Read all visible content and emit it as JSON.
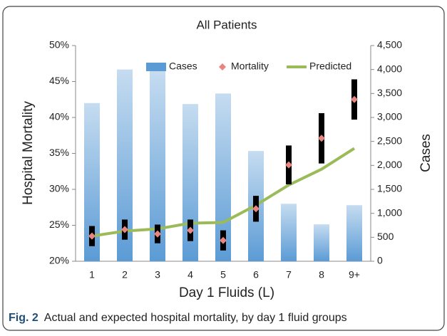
{
  "chart_data": {
    "type": "bar-line",
    "title": "All Patients",
    "categories": [
      "1",
      "2",
      "3",
      "4",
      "5",
      "6",
      "7",
      "8",
      "9+"
    ],
    "x_label": "Day 1 Fluids (L)",
    "y_label": "Hospital Mortality",
    "y2_label": "Cases",
    "ylim": [
      20,
      50
    ],
    "yticks": [
      {
        "value": 20,
        "label": "20%"
      },
      {
        "value": 25,
        "label": "25%"
      },
      {
        "value": 30,
        "label": "30%"
      },
      {
        "value": 35,
        "label": "35%"
      },
      {
        "value": 40,
        "label": "40%"
      },
      {
        "value": 45,
        "label": "45%"
      },
      {
        "value": 50,
        "label": "50%"
      }
    ],
    "y2lim": [
      0,
      4500
    ],
    "y2ticks": [
      0,
      500,
      {
        "value": 1000,
        "label": "1,000"
      },
      {
        "value": 1500,
        "label": "1,500"
      },
      {
        "value": 2000,
        "label": "2,000"
      },
      {
        "value": 2500,
        "label": "2,500"
      },
      {
        "value": 3000,
        "label": "3,000"
      },
      {
        "value": 3500,
        "label": "3,500"
      },
      {
        "value": 4000,
        "label": "4,000"
      },
      {
        "value": 4500,
        "label": "4,500"
      }
    ],
    "series": [
      {
        "name": "Cases",
        "type": "bar",
        "axis": "y2",
        "color": "#5b9bd5",
        "values": [
          3300,
          4000,
          3980,
          3280,
          3500,
          2300,
          1200,
          770,
          1170
        ]
      },
      {
        "name": "Mortality",
        "type": "scatter",
        "color": "#e8857f",
        "values": [
          23.5,
          24.4,
          23.8,
          24.3,
          22.9,
          27.3,
          33.4,
          37.1,
          42.5
        ],
        "errors": [
          1.4,
          1.4,
          1.3,
          1.5,
          1.4,
          1.8,
          2.7,
          3.5,
          2.8
        ]
      },
      {
        "name": "Predicted",
        "type": "line",
        "color": "#9bbb59",
        "values": [
          23.5,
          24.2,
          24.5,
          25.3,
          25.4,
          27.8,
          30.6,
          32.8,
          35.7
        ]
      }
    ],
    "legend": "top"
  },
  "caption": {
    "label": "Fig. 2",
    "text": "Actual and expected hospital mortality, by day 1 fluid groups"
  }
}
